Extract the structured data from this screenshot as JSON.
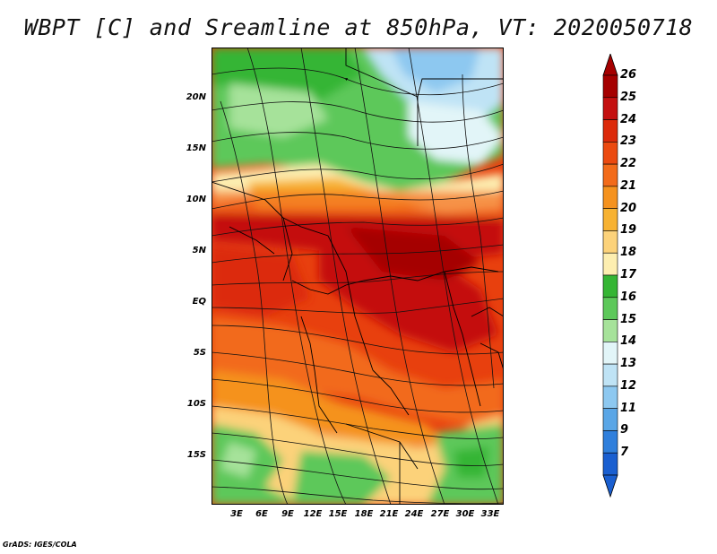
{
  "title": "WBPT [C] and Sreamline at 850hPa, VT: 2020050718",
  "credit": "GrADS: IGES/COLA",
  "map": {
    "lat_labels": [
      "20N",
      "15N",
      "10N",
      "5N",
      "EQ",
      "5S",
      "10S",
      "15S"
    ],
    "lat_values": [
      20,
      15,
      10,
      5,
      0,
      -5,
      -10,
      -15
    ],
    "lon_labels": [
      "3E",
      "6E",
      "9E",
      "12E",
      "15E",
      "18E",
      "21E",
      "24E",
      "27E",
      "30E",
      "33E"
    ],
    "lon_values": [
      3,
      6,
      9,
      12,
      15,
      18,
      21,
      24,
      27,
      30,
      33
    ],
    "lat_range": [
      -20,
      25
    ],
    "lon_range": [
      0,
      34.5
    ]
  },
  "colorbar": {
    "labels": [
      "26",
      "25",
      "24",
      "23",
      "22",
      "21",
      "20",
      "19",
      "18",
      "17",
      "16",
      "15",
      "14",
      "13",
      "12",
      "11",
      "9",
      "7"
    ],
    "colors": [
      "#a50000",
      "#c41010",
      "#dc2a0a",
      "#eb4a10",
      "#f26b1a",
      "#f5921e",
      "#f7b232",
      "#fcd27a",
      "#fdeeb0",
      "#35b534",
      "#5dc85a",
      "#a6e29a",
      "#e2f5f8",
      "#bfe3f5",
      "#8dc8f0",
      "#5aa6e6",
      "#2f7fdc",
      "#1a5fd0"
    ]
  }
}
